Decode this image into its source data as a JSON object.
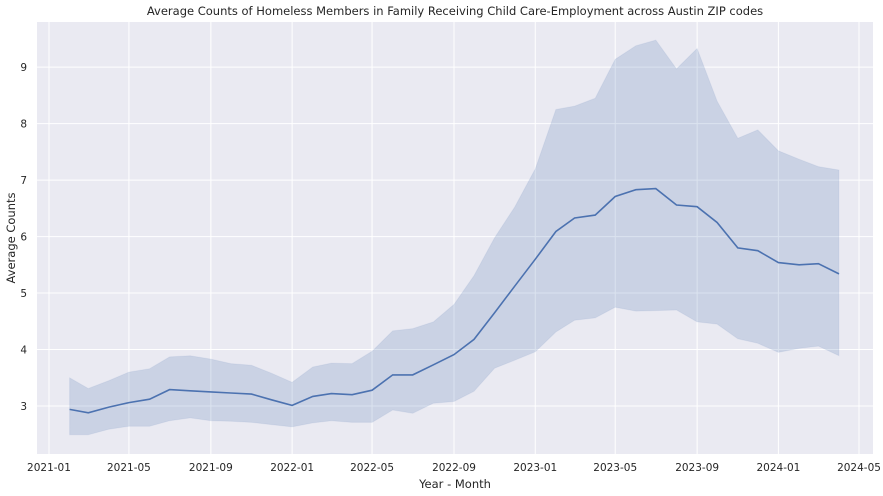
{
  "chart_data": {
    "type": "line",
    "title": "Average Counts of Homeless Members in Family Receiving Child Care-Employment across Austin ZIP codes",
    "xlabel": "Year - Month",
    "ylabel": "Average Counts",
    "x_ticks": [
      "2021-01",
      "2021-05",
      "2021-09",
      "2022-01",
      "2022-05",
      "2022-09",
      "2023-01",
      "2023-05",
      "2023-09",
      "2024-01",
      "2024-05"
    ],
    "y_ticks": [
      "3",
      "4",
      "5",
      "6",
      "7",
      "8",
      "9"
    ],
    "ylim": [
      2.15,
      9.8
    ],
    "xlim": [
      "2020-12-14",
      "2024-05-22"
    ],
    "grid": true,
    "colors": {
      "background": "#EAEAF2",
      "line": "#4C72B0",
      "band": "#4C72B0",
      "grid": "#FFFFFF"
    },
    "series": [
      {
        "x": [
          "2021-02-01",
          "2021-03-01",
          "2021-04-01",
          "2021-05-01",
          "2021-06-01",
          "2021-07-01",
          "2021-08-01",
          "2021-09-01",
          "2021-10-01",
          "2021-11-01",
          "2021-12-01",
          "2022-01-01",
          "2022-02-01",
          "2022-03-01",
          "2022-04-01",
          "2022-05-01",
          "2022-06-01",
          "2022-07-01",
          "2022-08-01",
          "2022-09-01",
          "2022-10-01",
          "2022-11-01",
          "2022-12-01",
          "2023-01-01",
          "2023-02-01",
          "2023-03-01",
          "2023-04-01",
          "2023-05-01",
          "2023-06-01",
          "2023-07-01",
          "2023-08-01",
          "2023-09-01",
          "2023-10-01",
          "2023-11-01",
          "2023-12-01",
          "2024-01-01",
          "2024-02-01",
          "2024-03-01",
          "2024-04-01"
        ],
        "y": [
          2.94,
          2.88,
          2.98,
          3.06,
          3.12,
          3.29,
          3.27,
          3.25,
          3.23,
          3.21,
          3.11,
          3.01,
          3.17,
          3.22,
          3.2,
          3.28,
          3.55,
          3.55,
          3.73,
          3.91,
          4.18,
          4.65,
          5.12,
          5.6,
          6.09,
          6.33,
          6.38,
          6.71,
          6.83,
          6.85,
          6.56,
          6.53,
          6.25,
          5.8,
          5.75,
          5.54,
          5.5,
          5.52,
          5.34
        ],
        "ci_upper": [
          3.5,
          3.31,
          3.45,
          3.6,
          3.66,
          3.87,
          3.89,
          3.83,
          3.75,
          3.72,
          3.58,
          3.42,
          3.69,
          3.76,
          3.75,
          3.97,
          4.33,
          4.37,
          4.49,
          4.8,
          5.31,
          5.98,
          6.52,
          7.2,
          8.25,
          8.31,
          8.45,
          9.14,
          9.38,
          9.48,
          8.97,
          9.33,
          8.4,
          7.74,
          7.89,
          7.52,
          7.37,
          7.24,
          7.18
        ],
        "ci_lower": [
          2.49,
          2.49,
          2.59,
          2.64,
          2.64,
          2.74,
          2.79,
          2.74,
          2.73,
          2.71,
          2.67,
          2.63,
          2.7,
          2.74,
          2.71,
          2.71,
          2.93,
          2.87,
          3.05,
          3.08,
          3.26,
          3.67,
          3.81,
          3.96,
          4.31,
          4.52,
          4.56,
          4.75,
          4.68,
          4.69,
          4.7,
          4.49,
          4.45,
          4.19,
          4.11,
          3.95,
          4.02,
          4.06,
          3.89
        ]
      }
    ]
  }
}
